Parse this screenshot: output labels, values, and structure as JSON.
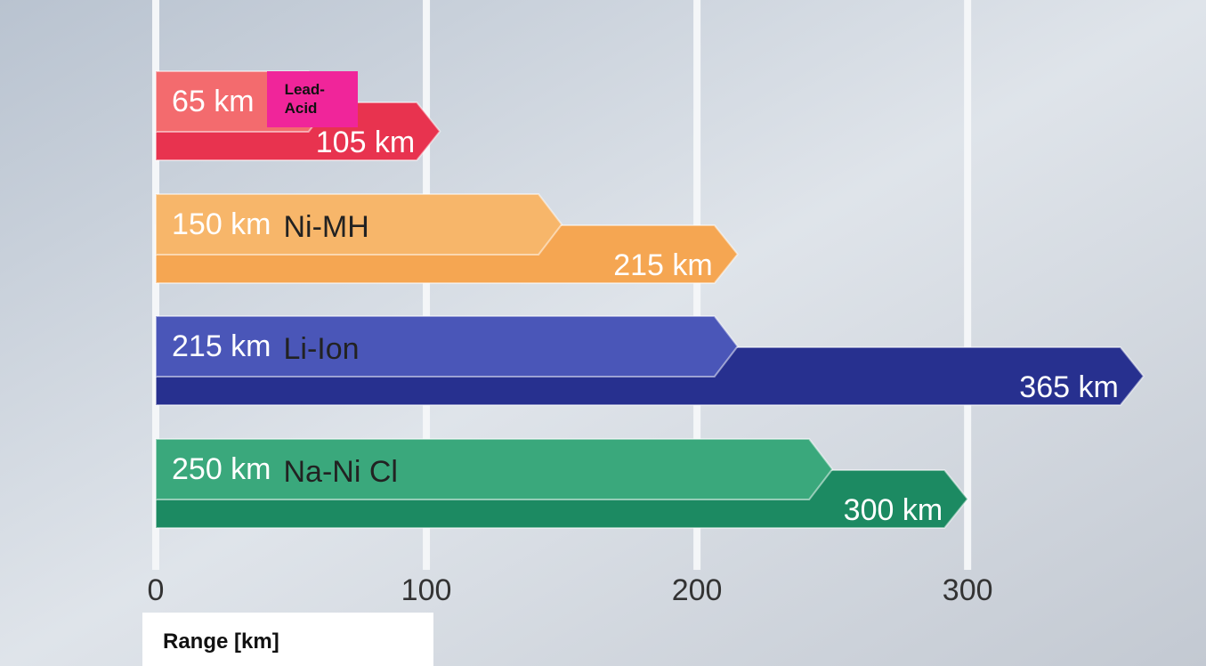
{
  "chart_data": {
    "type": "range-arrow",
    "categories": [
      "Lead-Acid",
      "Ni-MH",
      "Li-Ion",
      "Na-Ni Cl"
    ],
    "series": [
      {
        "color": [
          "#f36b6e",
          "#f7b66a",
          "#4a56b8",
          "#3aa87c"
        ],
        "values": [
          65,
          150,
          215,
          250
        ],
        "value_labels": [
          "65 km",
          "150 km",
          "215 km",
          "250 km"
        ]
      },
      {
        "color": [
          "#e8334f",
          "#f5a652",
          "#27308f",
          "#1c8a62"
        ],
        "values": [
          105,
          215,
          365,
          300
        ],
        "value_labels": [
          "105 km",
          "215 km",
          "365 km",
          "300 km"
        ]
      }
    ],
    "x_label": "Range [km]",
    "xlim": [
      0,
      370
    ],
    "xticks": [
      0,
      100,
      200,
      300
    ],
    "grid": true
  }
}
